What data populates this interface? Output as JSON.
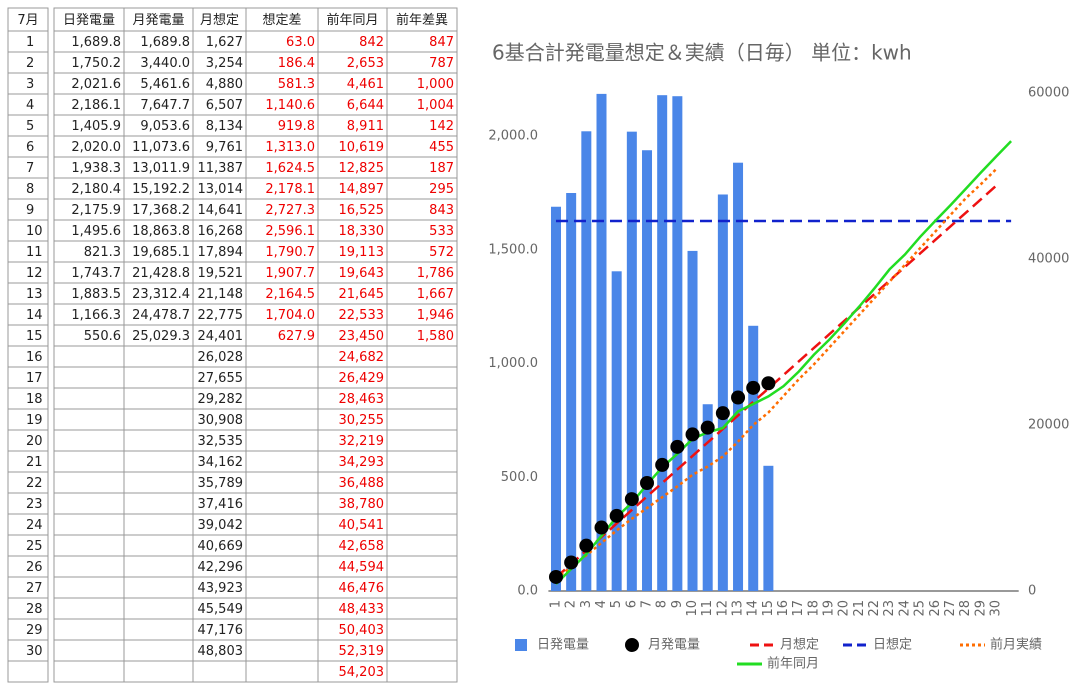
{
  "table": {
    "header": [
      "7月",
      "日発電量",
      "月発電量",
      "月想定",
      "想定差",
      "前年同月",
      "前年差異"
    ],
    "rows": [
      [
        "1",
        "1,689.8",
        "1,689.8",
        "1,627",
        "63.0",
        "842",
        "847"
      ],
      [
        "2",
        "1,750.2",
        "3,440.0",
        "3,254",
        "186.4",
        "2,653",
        "787"
      ],
      [
        "3",
        "2,021.6",
        "5,461.6",
        "4,880",
        "581.3",
        "4,461",
        "1,000"
      ],
      [
        "4",
        "2,186.1",
        "7,647.7",
        "6,507",
        "1,140.6",
        "6,644",
        "1,004"
      ],
      [
        "5",
        "1,405.9",
        "9,053.6",
        "8,134",
        "919.8",
        "8,911",
        "142"
      ],
      [
        "6",
        "2,020.0",
        "11,073.6",
        "9,761",
        "1,313.0",
        "10,619",
        "455"
      ],
      [
        "7",
        "1,938.3",
        "13,011.9",
        "11,387",
        "1,624.5",
        "12,825",
        "187"
      ],
      [
        "8",
        "2,180.4",
        "15,192.2",
        "13,014",
        "2,178.1",
        "14,897",
        "295"
      ],
      [
        "9",
        "2,175.9",
        "17,368.2",
        "14,641",
        "2,727.3",
        "16,525",
        "843"
      ],
      [
        "10",
        "1,495.6",
        "18,863.8",
        "16,268",
        "2,596.1",
        "18,330",
        "533"
      ],
      [
        "11",
        "821.3",
        "19,685.1",
        "17,894",
        "1,790.7",
        "19,113",
        "572"
      ],
      [
        "12",
        "1,743.7",
        "21,428.8",
        "19,521",
        "1,907.7",
        "19,643",
        "1,786"
      ],
      [
        "13",
        "1,883.5",
        "23,312.4",
        "21,148",
        "2,164.5",
        "21,645",
        "1,667"
      ],
      [
        "14",
        "1,166.3",
        "24,478.7",
        "22,775",
        "1,704.0",
        "22,533",
        "1,946"
      ],
      [
        "15",
        "550.6",
        "25,029.3",
        "24,401",
        "627.9",
        "23,450",
        "1,580"
      ],
      [
        "16",
        null,
        null,
        "26,028",
        null,
        "24,682",
        null
      ],
      [
        "17",
        null,
        null,
        "27,655",
        null,
        "26,429",
        null
      ],
      [
        "18",
        null,
        null,
        "29,282",
        null,
        "28,463",
        null
      ],
      [
        "19",
        null,
        null,
        "30,908",
        null,
        "30,255",
        null
      ],
      [
        "20",
        null,
        null,
        "32,535",
        null,
        "32,219",
        null
      ],
      [
        "21",
        null,
        null,
        "34,162",
        null,
        "34,293",
        null
      ],
      [
        "22",
        null,
        null,
        "35,789",
        null,
        "36,488",
        null
      ],
      [
        "23",
        null,
        null,
        "37,416",
        null,
        "38,780",
        null
      ],
      [
        "24",
        null,
        null,
        "39,042",
        null,
        "40,541",
        null
      ],
      [
        "25",
        null,
        null,
        "40,669",
        null,
        "42,658",
        null
      ],
      [
        "26",
        null,
        null,
        "42,296",
        null,
        "44,594",
        null
      ],
      [
        "27",
        null,
        null,
        "43,923",
        null,
        "46,476",
        null
      ],
      [
        "28",
        null,
        null,
        "45,549",
        null,
        "48,433",
        null
      ],
      [
        "29",
        null,
        null,
        "47,176",
        null,
        "50,403",
        null
      ],
      [
        "30",
        null,
        null,
        "48,803",
        null,
        "52,319",
        null
      ],
      [
        null,
        null,
        null,
        null,
        null,
        "54,203",
        null
      ]
    ]
  },
  "chart_data": {
    "type": "combo",
    "title": "6基合計発電量想定＆実績（日毎） 単位：kwh",
    "categories": [
      "1",
      "2",
      "3",
      "4",
      "5",
      "6",
      "7",
      "8",
      "9",
      "10",
      "11",
      "12",
      "13",
      "14",
      "15",
      "16",
      "17",
      "18",
      "19",
      "20",
      "21",
      "22",
      "23",
      "24",
      "25",
      "26",
      "27",
      "28",
      "29",
      "30",
      null
    ],
    "ylim": [
      0,
      2190
    ],
    "yticks": [
      {
        "value": 0,
        "label": "0.0"
      },
      {
        "value": 500,
        "label": "500.0"
      },
      {
        "value": 1000,
        "label": "1,000.0"
      },
      {
        "value": 1500,
        "label": "1,500.0"
      },
      {
        "value": 2000,
        "label": "2,000.0"
      }
    ],
    "y2lim": [
      0,
      60000
    ],
    "y2ticks": [
      0,
      20000,
      40000,
      60000
    ],
    "legend": "bottom",
    "series": [
      {
        "name": "日発電量",
        "type": "bar",
        "color": "#4a86e8",
        "values": [
          1689.8,
          1750.2,
          2021.6,
          2186.1,
          1405.9,
          2020.0,
          1938.3,
          2180.4,
          2175.9,
          1495.6,
          821.3,
          1743.7,
          1883.5,
          1166.3,
          550.6,
          null,
          null,
          null,
          null,
          null,
          null,
          null,
          null,
          null,
          null,
          null,
          null,
          null,
          null,
          null,
          null
        ]
      },
      {
        "name": "月発電量",
        "type": "scatter",
        "axis": "y2",
        "color": "#000000",
        "values": [
          1689.8,
          3440.0,
          5461.6,
          7647.7,
          9053.6,
          11073.6,
          13011.9,
          15192.2,
          17368.2,
          18863.8,
          19685.1,
          21428.8,
          23312.4,
          24478.7,
          25029.3,
          null,
          null,
          null,
          null,
          null,
          null,
          null,
          null,
          null,
          null,
          null,
          null,
          null,
          null,
          null,
          null
        ]
      },
      {
        "name": "月想定",
        "type": "line",
        "dash": "dashed",
        "axis": "y2",
        "color": "#ee1111",
        "values": [
          1627,
          3254,
          4880,
          6507,
          8134,
          9761,
          11387,
          13014,
          14641,
          16268,
          17894,
          19521,
          21148,
          22775,
          24401,
          26028,
          27655,
          29282,
          30908,
          32535,
          34162,
          35789,
          37416,
          39042,
          40669,
          42296,
          43923,
          45549,
          47176,
          48803,
          null
        ]
      },
      {
        "name": "日想定",
        "type": "line",
        "dash": "dashed",
        "color": "#1122cc",
        "values": [
          1627,
          1627,
          1627,
          1627,
          1627,
          1627,
          1627,
          1627,
          1627,
          1627,
          1627,
          1627,
          1627,
          1627,
          1627,
          1627,
          1627,
          1627,
          1627,
          1627,
          1627,
          1627,
          1627,
          1627,
          1627,
          1627,
          1627,
          1627,
          1627,
          1627,
          1627
        ]
      },
      {
        "name": "前月実績",
        "type": "line",
        "dash": "dotted",
        "axis": "y2",
        "color": "#ff6d01",
        "values": [
          1500,
          2900,
          4300,
          5800,
          7300,
          8700,
          10000,
          11300,
          12600,
          14000,
          15000,
          16200,
          18000,
          20000,
          21500,
          23500,
          25500,
          27300,
          29300,
          31300,
          33300,
          35300,
          37300,
          39300,
          41300,
          43300,
          45300,
          47300,
          49000,
          50800,
          null
        ]
      },
      {
        "name": "前年同月",
        "type": "line",
        "dash": "solid",
        "axis": "y2",
        "color": "#22dd22",
        "values": [
          842,
          2653,
          4461,
          6644,
          8911,
          10619,
          12825,
          14897,
          16525,
          18330,
          19113,
          19643,
          21645,
          22533,
          23450,
          24682,
          26429,
          28463,
          30255,
          32219,
          34293,
          36488,
          38780,
          40541,
          42658,
          44594,
          46476,
          48433,
          50403,
          52319,
          54203
        ]
      }
    ]
  }
}
